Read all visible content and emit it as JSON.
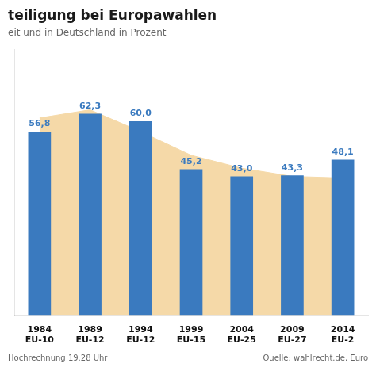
{
  "chart_data": {
    "type": "bar",
    "title": "teiligung bei Europawahlen",
    "subtitle": "eit und in Deutschland in Prozent",
    "categories": [
      [
        "1984",
        "EU-10"
      ],
      [
        "1989",
        "EU-12"
      ],
      [
        "1994",
        "EU-12"
      ],
      [
        "1999",
        "EU-15"
      ],
      [
        "2004",
        "EU-25"
      ],
      [
        "2009",
        "EU-27"
      ],
      [
        "2014",
        "EU-2"
      ]
    ],
    "series": [
      {
        "type": "bar",
        "color": "#3a7abf",
        "values": [
          56.8,
          62.3,
          60.0,
          45.2,
          43.0,
          43.3,
          48.1
        ],
        "value_labels": [
          "56,8",
          "62,3",
          "60,0",
          "45,2",
          "43,0",
          "43,3",
          "48,1"
        ]
      },
      {
        "type": "area",
        "color": "#f5d9a8",
        "values": [
          61.0,
          63.5,
          56.8,
          49.5,
          45.5,
          43.0,
          42.5
        ]
      }
    ],
    "ylim": [
      0,
      82
    ],
    "grid": false,
    "tick_labels": "x",
    "data_labels": true,
    "annotations": [
      "Hochrechnung 19.28 Uhr",
      "Quelle: wahlrecht.de, Euro"
    ]
  }
}
